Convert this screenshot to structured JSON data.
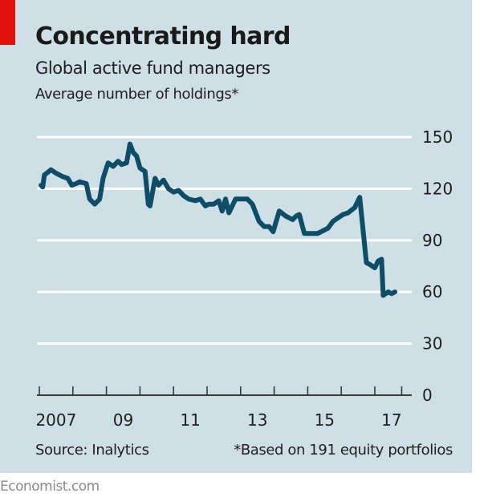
{
  "header": {
    "title": "Concentrating hard",
    "subtitle": "Global active fund managers",
    "units": "Average number of holdings*"
  },
  "footer": {
    "source": "Source: Inalytics",
    "footnote": "*Based on 191 equity portfolios",
    "brand": "Economist.com"
  },
  "colors": {
    "background": "#cfdfe6",
    "line": "#0e4d68",
    "gridline": "#ffffff",
    "axis": "#3a3a3a",
    "brand_tag": "#e3120b"
  },
  "chart_data": {
    "type": "line",
    "title": "Concentrating hard",
    "subtitle": "Global active fund managers",
    "ylabel": "Average number of holdings*",
    "xlabel": "",
    "ylim": [
      0,
      150
    ],
    "xlim": [
      2007.0,
      2018.2
    ],
    "yticks": [
      0,
      30,
      60,
      90,
      120,
      150
    ],
    "ytick_labels": [
      "0",
      "30",
      "60",
      "90",
      "120",
      "150"
    ],
    "xticks": [
      2007,
      2008,
      2009,
      2010,
      2011,
      2012,
      2013,
      2014,
      2015,
      2016,
      2017,
      2017.8
    ],
    "xtick_labels": [
      {
        "label": "2007",
        "at": 2007.5
      },
      {
        "label": "09",
        "at": 2009.5
      },
      {
        "label": "11",
        "at": 2011.5
      },
      {
        "label": "13",
        "at": 2013.5
      },
      {
        "label": "15",
        "at": 2015.5
      },
      {
        "label": "17",
        "at": 2017.5
      }
    ],
    "grid": true,
    "yaxis_side": "right",
    "series": [
      {
        "name": "Average number of holdings",
        "x": [
          2007.05,
          2007.1,
          2007.15,
          2007.35,
          2007.5,
          2007.7,
          2007.85,
          2007.97,
          2008.1,
          2008.2,
          2008.4,
          2008.5,
          2008.65,
          2008.8,
          2008.9,
          2009.05,
          2009.2,
          2009.35,
          2009.45,
          2009.6,
          2009.7,
          2009.8,
          2009.9,
          2010.0,
          2010.15,
          2010.25,
          2010.3,
          2010.45,
          2010.55,
          2010.7,
          2010.85,
          2011.0,
          2011.15,
          2011.3,
          2011.45,
          2011.65,
          2011.8,
          2011.95,
          2012.05,
          2012.2,
          2012.35,
          2012.45,
          2012.55,
          2012.65,
          2012.85,
          2013.1,
          2013.2,
          2013.35,
          2013.55,
          2013.7,
          2013.85,
          2013.97,
          2014.15,
          2014.35,
          2014.55,
          2014.65,
          2014.75,
          2014.9,
          2015.05,
          2015.3,
          2015.4,
          2015.6,
          2015.75,
          2015.9,
          2016.05,
          2016.2,
          2016.4,
          2016.5,
          2016.55,
          2016.75,
          2016.85,
          2017.0,
          2017.1,
          2017.2,
          2017.25,
          2017.4,
          2017.5,
          2017.6
        ],
        "values": [
          122,
          121,
          128,
          131,
          129,
          127,
          126,
          122,
          123,
          124,
          123,
          114,
          111,
          114,
          126,
          135,
          133,
          136,
          134,
          135,
          146,
          141,
          139,
          132,
          130,
          111,
          110,
          126,
          122,
          125,
          120,
          118,
          119,
          116,
          114,
          113,
          114,
          110,
          111,
          111,
          113,
          107,
          114,
          106,
          114,
          114,
          114,
          111,
          101,
          98,
          98,
          95,
          107,
          104,
          102,
          104,
          105,
          94,
          94,
          94,
          95,
          97,
          101,
          103,
          105,
          106,
          109,
          113,
          115,
          77,
          76,
          74,
          78,
          79,
          58,
          60,
          59,
          60
        ]
      }
    ]
  }
}
